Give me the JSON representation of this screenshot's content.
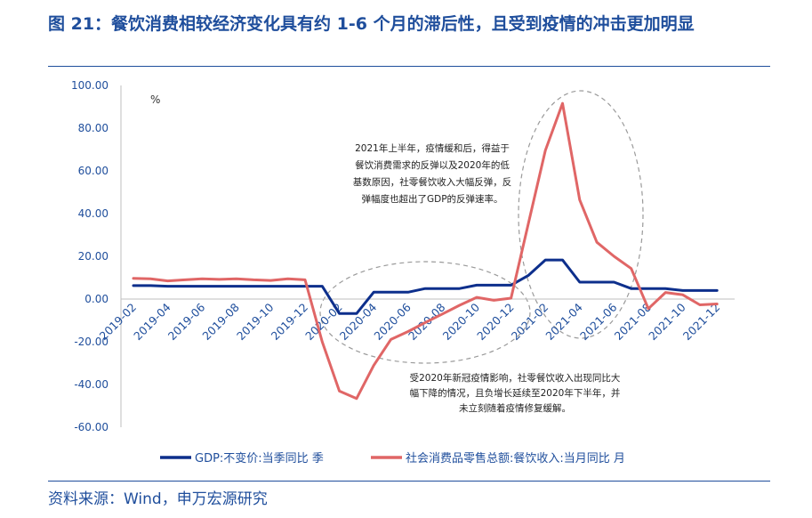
{
  "header": {
    "title": "图 21：餐饮消费相较经济变化具有约 1-6 个月的滞后性，且受到疫情的冲击更加明显"
  },
  "footer": {
    "source": "资料来源：Wind，申万宏源研究"
  },
  "colors": {
    "title": "#1f4e9c",
    "gdp_series": "#0d2f8c",
    "catering_series": "#e06666",
    "annotation_ellipse": "#9a9a9a"
  },
  "chart_data": {
    "type": "line",
    "title": "",
    "unit": "%",
    "xlabel": "",
    "ylabel": "",
    "ylim": [
      -60,
      100
    ],
    "yticks": [
      "100.00",
      "80.00",
      "60.00",
      "40.00",
      "20.00",
      "0.00",
      "-20.00",
      "-40.00",
      "-60.00"
    ],
    "x": [
      "2019-02",
      "2019-03",
      "2019-04",
      "2019-05",
      "2019-06",
      "2019-07",
      "2019-08",
      "2019-09",
      "2019-10",
      "2019-11",
      "2019-12",
      "2020-01",
      "2020-02",
      "2020-03",
      "2020-04",
      "2020-05",
      "2020-06",
      "2020-07",
      "2020-08",
      "2020-09",
      "2020-10",
      "2020-11",
      "2020-12",
      "2021-01",
      "2021-02",
      "2021-03",
      "2021-04",
      "2021-05",
      "2021-06",
      "2021-07",
      "2021-08",
      "2021-09",
      "2021-10",
      "2021-11",
      "2021-12"
    ],
    "xtick_labels": [
      "2019-02",
      "2019-04",
      "2019-06",
      "2019-08",
      "2019-10",
      "2019-12",
      "2020-02",
      "2020-04",
      "2020-06",
      "2020-08",
      "2020-10",
      "2020-12",
      "2021-02",
      "2021-04",
      "2021-06",
      "2021-08",
      "2021-10",
      "2021-12"
    ],
    "grid": false,
    "legend_position": "bottom",
    "series": [
      {
        "name": "GDP:不变价:当季同比 季",
        "values": [
          6.3,
          6.3,
          6.0,
          6.0,
          6.0,
          6.0,
          6.0,
          6.0,
          6.0,
          6.0,
          6.0,
          6.0,
          -6.8,
          -6.8,
          3.2,
          3.2,
          3.2,
          4.9,
          4.9,
          4.9,
          6.5,
          6.5,
          6.5,
          11.0,
          18.3,
          18.3,
          7.9,
          7.9,
          7.9,
          4.9,
          4.9,
          4.9,
          4.0,
          4.0,
          4.0
        ]
      },
      {
        "name": "社会消费品零售总额:餐饮收入:当月同比 月",
        "values": [
          9.7,
          9.5,
          8.5,
          9.0,
          9.5,
          9.2,
          9.5,
          9.0,
          8.7,
          9.5,
          9.0,
          -20.0,
          -43.1,
          -46.6,
          -31.1,
          -18.9,
          -15.2,
          -11.0,
          -7.0,
          -2.9,
          0.8,
          -0.6,
          0.4,
          35.0,
          69.6,
          91.6,
          46.4,
          26.6,
          20.0,
          14.3,
          -4.5,
          3.1,
          2.0,
          -2.7,
          -2.3
        ]
      }
    ],
    "annotations": [
      "2021年上半年，疫情缓和后，得益于餐饮消费需求的反弹以及2020年的低基数原因，社零餐饮收入大幅反弹，反弹幅度也超出了GDP的反弹速率。",
      "受2020年新冠疫情影响，社零餐饮收入出现同比大幅下降的情况，且负增长延续至2020年下半年，并未立刻随着疫情修复缓解。"
    ],
    "annotation_lines": [
      [
        "2021年上半年，疫情缓和后，得益于",
        "餐饮消费需求的反弹以及2020年的低",
        "基数原因，社零餐饮收入大幅反弹，反",
        "弹幅度也超出了GDP的反弹速率。"
      ],
      [
        "受2020年新冠疫情影响，社零餐饮收入出现同比大",
        "幅下降的情况，且负增长延续至2020年下半年，并",
        "未立刻随着疫情修复缓解。"
      ]
    ]
  }
}
